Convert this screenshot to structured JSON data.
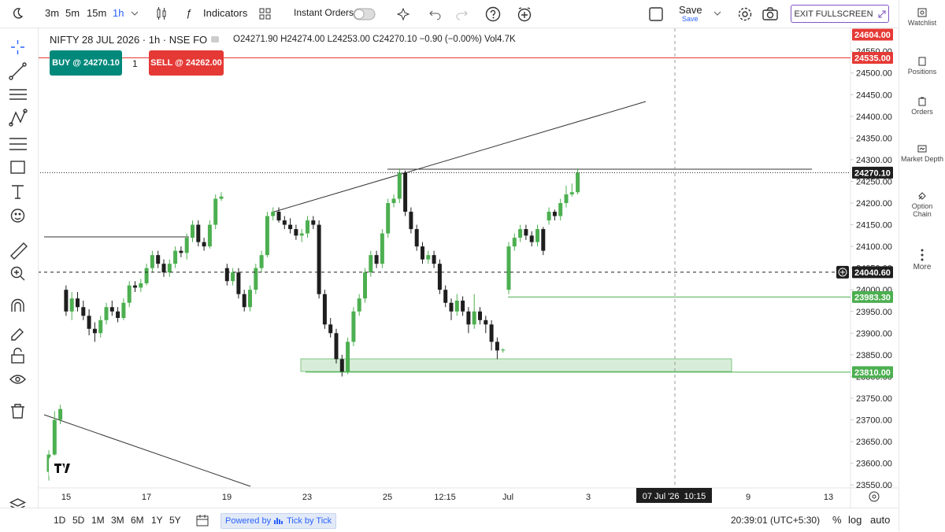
{
  "toolbar": {
    "intervals": [
      "3m",
      "5m",
      "15m",
      "1h"
    ],
    "indicators": "Indicators",
    "instant_orders": "Instant Orders",
    "save": "Save",
    "save_sub": "Save",
    "exit": "EXIT FULLSCREEN"
  },
  "sidebar": [
    "Watchlist",
    "Positions",
    "Orders",
    "Market Depth",
    "Option Chain",
    "More"
  ],
  "legend": {
    "symbol": "NIFTY 28 JUL 2026 · 1h · NSE FO",
    "ohlc": "O24271.90 H24274.00 L24253.00 C24270.10 −0.90 (−0.00%) Vol4.7K"
  },
  "order": {
    "buy": "BUY @ 24270.10",
    "qty": "1",
    "sell": "SELL @ 24262.00"
  },
  "bottom": {
    "ranges": [
      "1D",
      "5D",
      "1M",
      "3M",
      "6M",
      "1Y",
      "5Y"
    ],
    "powered": "Powered by",
    "provider": "Tick by Tick",
    "clock": "20:39:01 (UTC+5:30)",
    "percent": "%",
    "log": "log",
    "auto": "auto"
  },
  "chart_data": {
    "type": "candlestick",
    "up_color": "#4caf50",
    "down_color": "#1e1e1e",
    "ylim": [
      23543,
      24603
    ],
    "yticks": [
      {
        "value": 24550,
        "label": "24550.00"
      },
      {
        "value": 24500,
        "label": "24500.00"
      },
      {
        "value": 24450,
        "label": "24450.00"
      },
      {
        "value": 24400,
        "label": "24400.00"
      },
      {
        "value": 24350,
        "label": "24350.00"
      },
      {
        "value": 24300,
        "label": "24300.00"
      },
      {
        "value": 24250,
        "label": "24250.00"
      },
      {
        "value": 24200,
        "label": "24200.00"
      },
      {
        "value": 24150,
        "label": "24150.00"
      },
      {
        "value": 24100,
        "label": "24100.00"
      },
      {
        "value": 24050,
        "label": "24050.00"
      },
      {
        "value": 24000,
        "label": "24000.00"
      },
      {
        "value": 23950,
        "label": "23950.00"
      },
      {
        "value": 23900,
        "label": "23900.00"
      },
      {
        "value": 23850,
        "label": "23850.00"
      },
      {
        "value": 23800,
        "label": "23800.00"
      },
      {
        "value": 23750,
        "label": "23750.00"
      },
      {
        "value": 23700,
        "label": "23700.00"
      },
      {
        "value": 23650,
        "label": "23650.00"
      },
      {
        "value": 23600,
        "label": "23600.00"
      },
      {
        "value": 23550,
        "label": "23550.00"
      }
    ],
    "x_labels": [
      "15",
      "17",
      "19",
      "23",
      "25",
      "12:15",
      "Jul",
      "3",
      "9",
      "13"
    ],
    "crosshair_time": "07 Jul '26  10:15",
    "price_labels": [
      {
        "value": 24604,
        "label": "24604.00",
        "color": "#e53935"
      },
      {
        "value": 24535,
        "label": "24535.00",
        "color": "#e53935"
      },
      {
        "value": 24270.1,
        "label": "24270.10",
        "color": "#1e1e1e"
      },
      {
        "value": 24040.6,
        "label": "24040.60",
        "color": "#1e1e1e"
      },
      {
        "value": 23983.3,
        "label": "23983.30",
        "color": "#4caf50"
      },
      {
        "value": 23810,
        "label": "23810.00",
        "color": "#4caf50"
      }
    ],
    "candles": [
      [
        23580,
        23630,
        23560,
        23620
      ],
      [
        23620,
        23720,
        23610,
        23700
      ],
      [
        23700,
        23735,
        23690,
        23725
      ],
      [
        24000,
        24010,
        23940,
        23950
      ],
      [
        23950,
        23995,
        23930,
        23980
      ],
      [
        23980,
        23995,
        23950,
        23960
      ],
      [
        23960,
        23975,
        23930,
        23940
      ],
      [
        23940,
        23955,
        23895,
        23910
      ],
      [
        23910,
        23925,
        23880,
        23900
      ],
      [
        23900,
        23940,
        23890,
        23930
      ],
      [
        23930,
        23970,
        23920,
        23960
      ],
      [
        23960,
        23975,
        23940,
        23950
      ],
      [
        23950,
        23960,
        23925,
        23935
      ],
      [
        23935,
        23980,
        23930,
        23970
      ],
      [
        23970,
        24020,
        23960,
        24010
      ],
      [
        24010,
        24020,
        23995,
        24005
      ],
      [
        24005,
        24025,
        23995,
        24015
      ],
      [
        24015,
        24060,
        24010,
        24050
      ],
      [
        24050,
        24090,
        24040,
        24080
      ],
      [
        24080,
        24090,
        24050,
        24060
      ],
      [
        24060,
        24070,
        24030,
        24040
      ],
      [
        24040,
        24070,
        24030,
        24060
      ],
      [
        24060,
        24100,
        24050,
        24090
      ],
      [
        24090,
        24100,
        24075,
        24085
      ],
      [
        24085,
        24130,
        24070,
        24120
      ],
      [
        24120,
        24160,
        24110,
        24150
      ],
      [
        24150,
        24160,
        24100,
        24110
      ],
      [
        24110,
        24120,
        24090,
        24100
      ],
      [
        24100,
        24160,
        24095,
        24150
      ],
      [
        24150,
        24220,
        24140,
        24210
      ],
      [
        24210,
        24225,
        24205,
        24215
      ],
      [
        24050,
        24060,
        24010,
        24020
      ],
      [
        24020,
        24050,
        24010,
        24040
      ],
      [
        24040,
        24050,
        23980,
        23990
      ],
      [
        23990,
        24000,
        23950,
        23960
      ],
      [
        23960,
        24010,
        23950,
        24000
      ],
      [
        24000,
        24060,
        23990,
        24050
      ],
      [
        24050,
        24090,
        24040,
        24080
      ],
      [
        24080,
        24180,
        24075,
        24170
      ],
      [
        24170,
        24190,
        24160,
        24180
      ],
      [
        24180,
        24190,
        24155,
        24160
      ],
      [
        24160,
        24170,
        24140,
        24150
      ],
      [
        24150,
        24165,
        24130,
        24140
      ],
      [
        24140,
        24150,
        24115,
        24125
      ],
      [
        24125,
        24140,
        24110,
        24130
      ],
      [
        24130,
        24170,
        24120,
        24160
      ],
      [
        24160,
        24170,
        24140,
        24150
      ],
      [
        24150,
        24160,
        23980,
        23990
      ],
      [
        23990,
        24000,
        23910,
        23920
      ],
      [
        23920,
        23935,
        23890,
        23900
      ],
      [
        23900,
        23910,
        23830,
        23840
      ],
      [
        23840,
        23850,
        23800,
        23810
      ],
      [
        23810,
        23890,
        23805,
        23880
      ],
      [
        23880,
        23960,
        23870,
        23950
      ],
      [
        23950,
        23990,
        23940,
        23980
      ],
      [
        23980,
        24050,
        23970,
        24040
      ],
      [
        24040,
        24090,
        24030,
        24080
      ],
      [
        24080,
        24090,
        24050,
        24060
      ],
      [
        24060,
        24140,
        24050,
        24130
      ],
      [
        24130,
        24210,
        24120,
        24200
      ],
      [
        24200,
        24220,
        24190,
        24210
      ],
      [
        24210,
        24280,
        24200,
        24270
      ],
      [
        24270,
        24275,
        24170,
        24180
      ],
      [
        24180,
        24190,
        24130,
        24140
      ],
      [
        24140,
        24150,
        24090,
        24100
      ],
      [
        24100,
        24110,
        24060,
        24070
      ],
      [
        24070,
        24090,
        24060,
        24080
      ],
      [
        24080,
        24090,
        24050,
        24060
      ],
      [
        24060,
        24070,
        23990,
        24000
      ],
      [
        24000,
        24010,
        23960,
        23970
      ],
      [
        23970,
        23980,
        23930,
        23950
      ],
      [
        23950,
        23990,
        23940,
        23975
      ],
      [
        23975,
        23985,
        23940,
        23950
      ],
      [
        23950,
        23960,
        23900,
        23920
      ],
      [
        23920,
        23990,
        23910,
        23950
      ],
      [
        23950,
        23960,
        23920,
        23930
      ],
      [
        23930,
        23940,
        23900,
        23920
      ],
      [
        23920,
        23930,
        23860,
        23880
      ],
      [
        23880,
        23890,
        23840,
        23860
      ],
      [
        23860,
        23865,
        23855,
        23862
      ],
      [
        24000,
        24110,
        23990,
        24100
      ],
      [
        24100,
        24130,
        24090,
        24120
      ],
      [
        24120,
        24150,
        24110,
        24140
      ],
      [
        24140,
        24150,
        24115,
        24125
      ],
      [
        24125,
        24135,
        24100,
        24110
      ],
      [
        24110,
        24150,
        24100,
        24140
      ],
      [
        24140,
        24145,
        24080,
        24090
      ],
      [
        24160,
        24190,
        24150,
        24180
      ],
      [
        24180,
        24185,
        24160,
        24170
      ],
      [
        24170,
        24210,
        24160,
        24200
      ],
      [
        24200,
        24240,
        24190,
        24220
      ],
      [
        24220,
        24245,
        24215,
        24225
      ],
      [
        24225,
        24280,
        24220,
        24270
      ]
    ]
  }
}
